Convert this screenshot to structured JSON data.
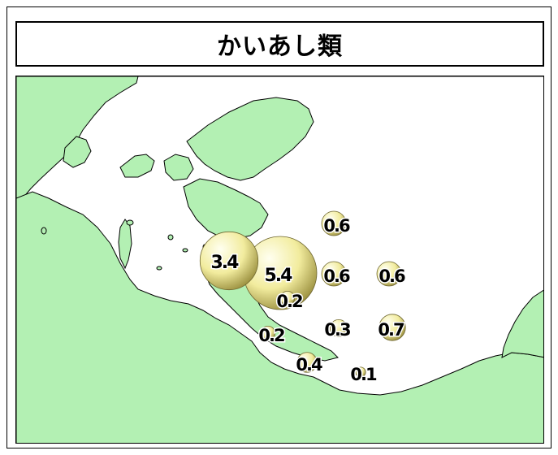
{
  "title": "かいあし類",
  "colors": {
    "land": "#b3f0b3",
    "sea": "#ffffff",
    "coast": "#000000",
    "bubble_light": "#fffff0",
    "bubble_mid": "#f2ec9e",
    "bubble_dark": "#9c9140"
  },
  "stations": [
    {
      "id": "s1",
      "value": 3.4,
      "label": "3.4"
    },
    {
      "id": "s2",
      "value": 5.4,
      "label": "5.4"
    },
    {
      "id": "s3",
      "value": 0.2,
      "label": "0.2"
    },
    {
      "id": "s4",
      "value": 0.2,
      "label": "0.2"
    },
    {
      "id": "s5",
      "value": 0.6,
      "label": "0.6"
    },
    {
      "id": "s6",
      "value": 0.6,
      "label": "0.6"
    },
    {
      "id": "s7",
      "value": 0.6,
      "label": "0.6"
    },
    {
      "id": "s8",
      "value": 0.3,
      "label": "0.3"
    },
    {
      "id": "s9",
      "value": 0.7,
      "label": "0.7"
    },
    {
      "id": "s10",
      "value": 0.4,
      "label": "0.4"
    },
    {
      "id": "s11",
      "value": 0.1,
      "label": "0.1"
    }
  ]
}
